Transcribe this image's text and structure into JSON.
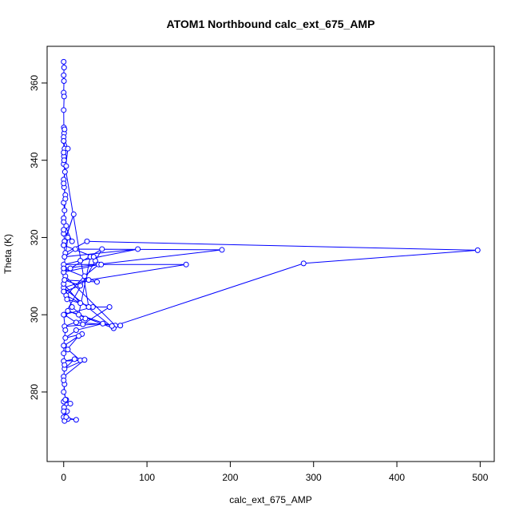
{
  "chart_data": {
    "type": "line",
    "title": "ATOM1 Northbound calc_ext_675_AMP",
    "x_label": "calc_ext_675_AMP",
    "y_label": "Theta (K)",
    "color": "#0000ff",
    "x": [
      0,
      0.5,
      0,
      0.3,
      0,
      0.5,
      0,
      0.2,
      0.5,
      0,
      1,
      0.3,
      0,
      1.5,
      0,
      0.5,
      2,
      0,
      1,
      0,
      3,
      0,
      1,
      12,
      0,
      2,
      28,
      497,
      288,
      62,
      2,
      0.5,
      190,
      14,
      1,
      89,
      20,
      0,
      147,
      30,
      0,
      60,
      5,
      58,
      68,
      15,
      1,
      46,
      8,
      0,
      42,
      25,
      3,
      20,
      0,
      10,
      26,
      1,
      47,
      15,
      2,
      22,
      0.5,
      18,
      0,
      5,
      20,
      0,
      13,
      1,
      25,
      0,
      1,
      0,
      3,
      0,
      8,
      0.5,
      4,
      0,
      15,
      5,
      1,
      3,
      0,
      2,
      0,
      1,
      0,
      2,
      0,
      35,
      4,
      0,
      20,
      1,
      40,
      0,
      5,
      0,
      10,
      0,
      2,
      0,
      5,
      0,
      3,
      0,
      1,
      0,
      0.5,
      30,
      55,
      23,
      18,
      32,
      45,
      38,
      36,
      0
    ],
    "values": [
      365.5,
      364,
      362,
      360.5,
      357.5,
      356.5,
      353,
      348.5,
      347,
      345,
      343,
      341,
      339,
      337,
      335,
      333,
      331,
      329,
      327,
      325,
      323,
      321,
      319,
      326,
      318,
      316,
      319,
      316.7,
      313.3,
      297.2,
      310,
      312,
      316.8,
      317,
      315,
      317,
      314,
      313,
      313,
      309,
      307,
      296.5,
      301,
      297.1,
      297.2,
      298,
      300,
      317,
      312,
      311,
      313,
      310,
      305,
      303,
      308,
      302,
      299,
      297,
      297.7,
      296,
      294,
      295,
      292,
      294.5,
      290,
      291,
      288.2,
      288,
      288.5,
      286,
      288.3,
      284,
      282,
      280,
      278,
      277.5,
      277,
      276,
      275,
      273.5,
      272.8,
      273,
      272.5,
      273.5,
      275,
      278,
      283,
      287,
      292,
      296,
      300,
      302,
      304,
      306,
      307.5,
      309,
      308.5,
      312,
      320,
      322,
      319,
      324,
      330,
      334,
      343,
      346,
      338.5,
      342,
      348,
      345,
      340,
      302,
      302,
      297.5,
      300,
      315,
      313,
      314,
      315,
      318
    ],
    "xlim": [
      -19.9,
      516.9
    ],
    "ylim": [
      262,
      369.5
    ],
    "xticks": [
      0,
      100,
      200,
      300,
      400,
      500
    ],
    "yticks": [
      280,
      300,
      320,
      340,
      360
    ]
  }
}
